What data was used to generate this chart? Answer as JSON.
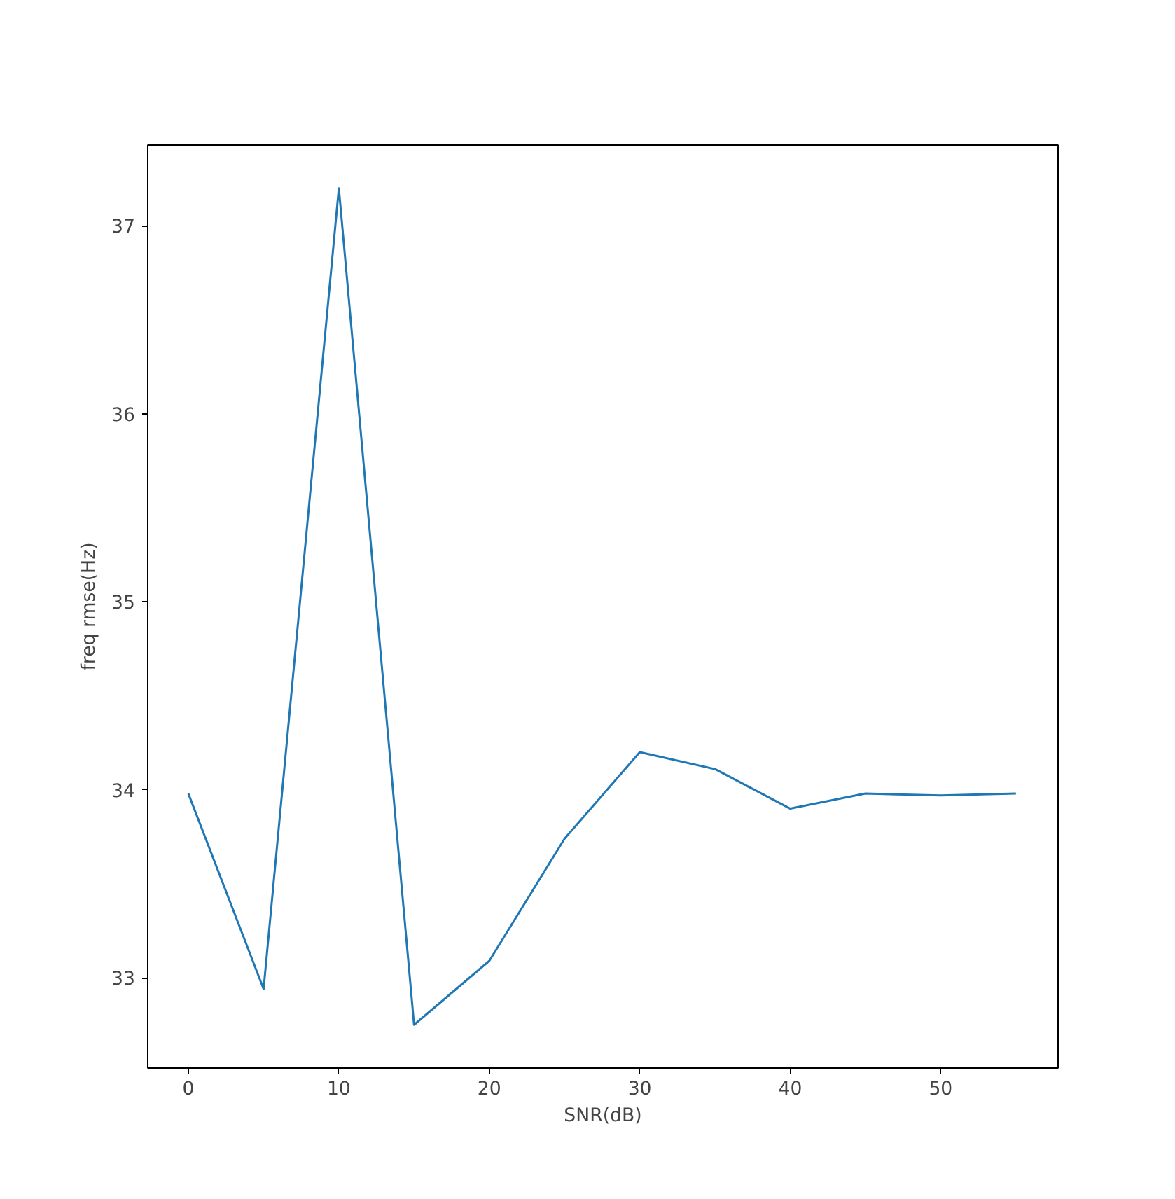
{
  "chart_data": {
    "type": "line",
    "xlabel": "SNR(dB)",
    "ylabel": "freq rmse(Hz)",
    "x": [
      0,
      5,
      10,
      15,
      20,
      25,
      30,
      35,
      40,
      45,
      50,
      55
    ],
    "series": [
      {
        "color": "#1f77b4",
        "values": [
          33.98,
          32.94,
          37.2,
          32.75,
          33.09,
          33.74,
          34.2,
          34.11,
          33.9,
          33.98,
          33.97,
          33.98
        ]
      }
    ],
    "xlim": [
      -2.7,
      57.8
    ],
    "ylim": [
      32.52,
      37.43
    ],
    "xticks": [
      0,
      10,
      20,
      30,
      40,
      50
    ],
    "yticks": [
      33,
      34,
      35,
      36,
      37
    ],
    "grid": false,
    "marker": "none",
    "line_style": "solid"
  }
}
